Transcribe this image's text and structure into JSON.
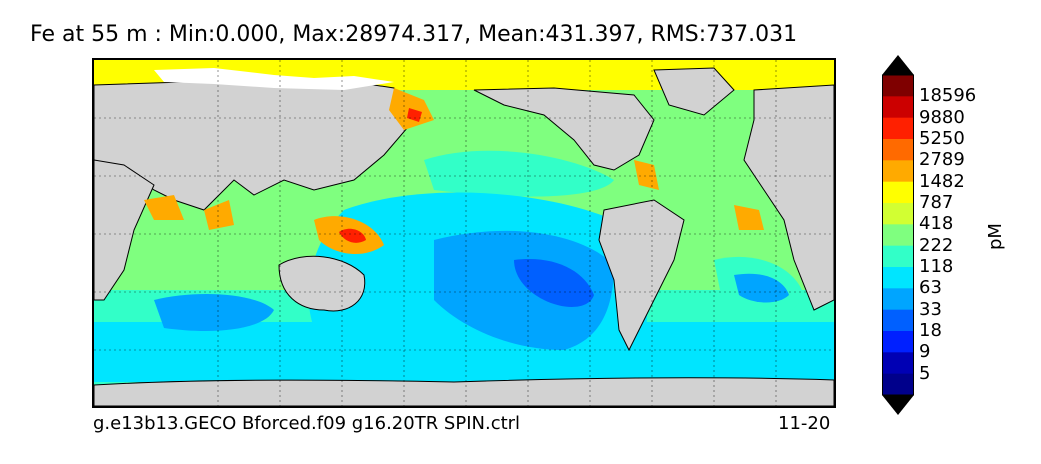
{
  "title": "Fe at 55 m : Min:0.000, Max:28974.317, Mean:431.397, RMS:737.031",
  "footer_left": "g.e13b13.GECO Bforced.f09 g16.20TR SPIN.ctrl",
  "footer_right": "11-20",
  "colorbar": {
    "units": "pM",
    "labels": [
      "18596",
      "9880",
      "5250",
      "2789",
      "1482",
      "787",
      "418",
      "222",
      "118",
      "63",
      "33",
      "18",
      "9",
      "5"
    ],
    "colors_top_to_bottom": [
      "#7f0000",
      "#cc0000",
      "#ff2000",
      "#ff6a00",
      "#ffaa00",
      "#ffff00",
      "#d2ff32",
      "#7fff7f",
      "#32ffc8",
      "#00e5ff",
      "#00a5ff",
      "#0060ff",
      "#0020ff",
      "#0000b4",
      "#00008b"
    ]
  },
  "map_colors": {
    "land": "#d2d2d2",
    "sea_ice": "#ffffff",
    "deep_blue": "#0060ff",
    "blue": "#00a5ff",
    "cyan": "#00e5ff",
    "aqua": "#32ffc8",
    "green": "#7fff7f",
    "lime": "#d2ff32",
    "yellow": "#ffff00",
    "orange": "#ffaa00",
    "red": "#ff2000"
  }
}
